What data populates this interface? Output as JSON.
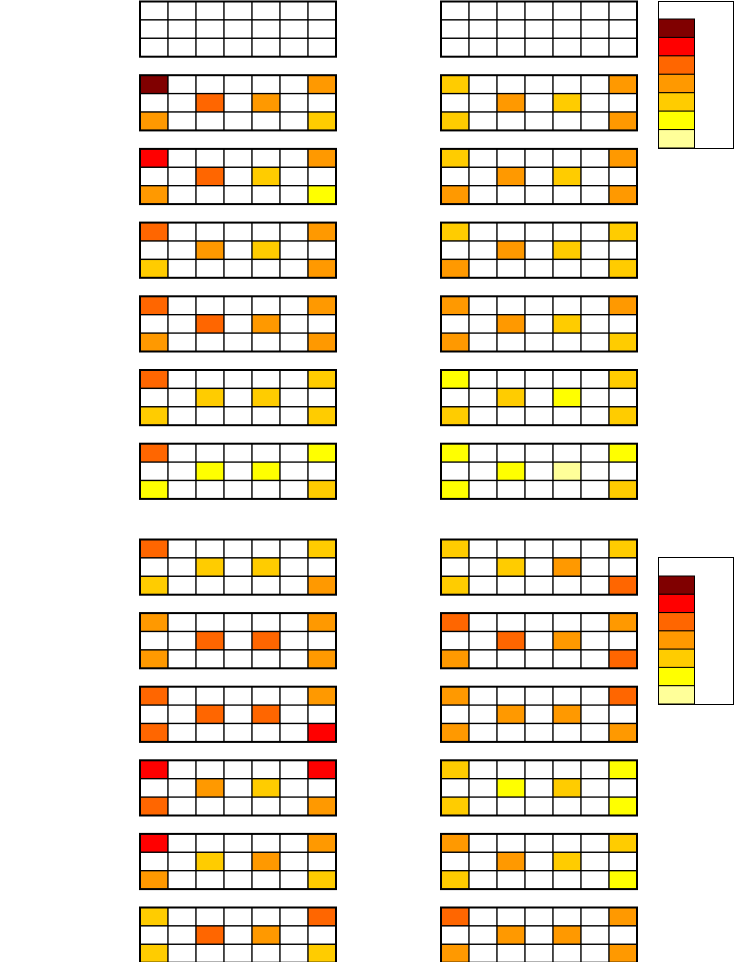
{
  "palette": [
    "#ffffff",
    "#800000",
    "#ff0000",
    "#ff6600",
    "#ff9900",
    "#ffcc00",
    "#ffff00",
    "#ffff99"
  ],
  "panels": [
    {
      "blocks": [
        [
          [
            0,
            0,
            0,
            0,
            0,
            0,
            0
          ],
          [
            0,
            0,
            0,
            0,
            0,
            0,
            0
          ],
          [
            0,
            0,
            0,
            0,
            0,
            0,
            0
          ]
        ],
        [
          [
            1,
            0,
            0,
            0,
            0,
            0,
            4
          ],
          [
            0,
            0,
            3,
            0,
            4,
            0,
            0
          ],
          [
            4,
            0,
            0,
            0,
            0,
            0,
            5
          ]
        ],
        [
          [
            2,
            0,
            0,
            0,
            0,
            0,
            4
          ],
          [
            0,
            0,
            3,
            0,
            5,
            0,
            0
          ],
          [
            4,
            0,
            0,
            0,
            0,
            0,
            6
          ]
        ],
        [
          [
            3,
            0,
            0,
            0,
            0,
            0,
            4
          ],
          [
            0,
            0,
            4,
            0,
            5,
            0,
            0
          ],
          [
            5,
            0,
            0,
            0,
            0,
            0,
            4
          ]
        ],
        [
          [
            3,
            0,
            0,
            0,
            0,
            0,
            4
          ],
          [
            0,
            0,
            3,
            0,
            4,
            0,
            0
          ],
          [
            4,
            0,
            0,
            0,
            0,
            0,
            4
          ]
        ],
        [
          [
            3,
            0,
            0,
            0,
            0,
            0,
            5
          ],
          [
            0,
            0,
            5,
            0,
            5,
            0,
            0
          ],
          [
            5,
            0,
            0,
            0,
            0,
            0,
            5
          ]
        ],
        [
          [
            3,
            0,
            0,
            0,
            0,
            0,
            6
          ],
          [
            0,
            0,
            6,
            0,
            6,
            0,
            0
          ],
          [
            6,
            0,
            0,
            0,
            0,
            0,
            5
          ]
        ]
      ]
    },
    {
      "blocks": [
        [
          [
            0,
            0,
            0,
            0,
            0,
            0,
            0
          ],
          [
            0,
            0,
            0,
            0,
            0,
            0,
            0
          ],
          [
            0,
            0,
            0,
            0,
            0,
            0,
            0
          ]
        ],
        [
          [
            5,
            0,
            0,
            0,
            0,
            0,
            4
          ],
          [
            0,
            0,
            4,
            0,
            5,
            0,
            0
          ],
          [
            5,
            0,
            0,
            0,
            0,
            0,
            4
          ]
        ],
        [
          [
            5,
            0,
            0,
            0,
            0,
            0,
            4
          ],
          [
            0,
            0,
            4,
            0,
            5,
            0,
            0
          ],
          [
            4,
            0,
            0,
            0,
            0,
            0,
            4
          ]
        ],
        [
          [
            5,
            0,
            0,
            0,
            0,
            0,
            5
          ],
          [
            0,
            0,
            4,
            0,
            5,
            0,
            0
          ],
          [
            4,
            0,
            0,
            0,
            0,
            0,
            5
          ]
        ],
        [
          [
            4,
            0,
            0,
            0,
            0,
            0,
            4
          ],
          [
            0,
            0,
            4,
            0,
            5,
            0,
            0
          ],
          [
            4,
            0,
            0,
            0,
            0,
            0,
            5
          ]
        ],
        [
          [
            6,
            0,
            0,
            0,
            0,
            0,
            5
          ],
          [
            0,
            0,
            5,
            0,
            6,
            0,
            0
          ],
          [
            5,
            0,
            0,
            0,
            0,
            0,
            5
          ]
        ],
        [
          [
            6,
            0,
            0,
            0,
            0,
            0,
            6
          ],
          [
            0,
            0,
            6,
            0,
            7,
            0,
            0
          ],
          [
            6,
            0,
            0,
            0,
            0,
            0,
            5
          ]
        ]
      ]
    },
    {
      "blocks": [
        [
          [
            3,
            0,
            0,
            0,
            0,
            0,
            5
          ],
          [
            0,
            0,
            5,
            0,
            5,
            0,
            0
          ],
          [
            5,
            0,
            0,
            0,
            0,
            0,
            4
          ]
        ],
        [
          [
            4,
            0,
            0,
            0,
            0,
            0,
            4
          ],
          [
            0,
            0,
            3,
            0,
            3,
            0,
            0
          ],
          [
            4,
            0,
            0,
            0,
            0,
            0,
            4
          ]
        ],
        [
          [
            3,
            0,
            0,
            0,
            0,
            0,
            4
          ],
          [
            0,
            0,
            3,
            0,
            3,
            0,
            0
          ],
          [
            3,
            0,
            0,
            0,
            0,
            0,
            2
          ]
        ],
        [
          [
            2,
            0,
            0,
            0,
            0,
            0,
            2
          ],
          [
            0,
            0,
            4,
            0,
            5,
            0,
            0
          ],
          [
            3,
            0,
            0,
            0,
            0,
            0,
            4
          ]
        ],
        [
          [
            2,
            0,
            0,
            0,
            0,
            0,
            4
          ],
          [
            0,
            0,
            5,
            0,
            4,
            0,
            0
          ],
          [
            4,
            0,
            0,
            0,
            0,
            0,
            5
          ]
        ],
        [
          [
            5,
            0,
            0,
            0,
            0,
            0,
            3
          ],
          [
            0,
            0,
            3,
            0,
            4,
            0,
            0
          ],
          [
            5,
            0,
            0,
            0,
            0,
            0,
            5
          ]
        ]
      ]
    },
    {
      "blocks": [
        [
          [
            5,
            0,
            0,
            0,
            0,
            0,
            5
          ],
          [
            0,
            0,
            5,
            0,
            4,
            0,
            0
          ],
          [
            5,
            0,
            0,
            0,
            0,
            0,
            3
          ]
        ],
        [
          [
            3,
            0,
            0,
            0,
            0,
            0,
            4
          ],
          [
            0,
            0,
            3,
            0,
            4,
            0,
            0
          ],
          [
            4,
            0,
            0,
            0,
            0,
            0,
            3
          ]
        ],
        [
          [
            4,
            0,
            0,
            0,
            0,
            0,
            3
          ],
          [
            0,
            0,
            4,
            0,
            4,
            0,
            0
          ],
          [
            4,
            0,
            0,
            0,
            0,
            0,
            4
          ]
        ],
        [
          [
            5,
            0,
            0,
            0,
            0,
            0,
            6
          ],
          [
            0,
            0,
            6,
            0,
            5,
            0,
            0
          ],
          [
            5,
            0,
            0,
            0,
            0,
            0,
            6
          ]
        ],
        [
          [
            4,
            0,
            0,
            0,
            0,
            0,
            5
          ],
          [
            0,
            0,
            4,
            0,
            5,
            0,
            0
          ],
          [
            5,
            0,
            0,
            0,
            0,
            0,
            6
          ]
        ],
        [
          [
            3,
            0,
            0,
            0,
            0,
            0,
            4
          ],
          [
            0,
            0,
            4,
            0,
            4,
            0,
            0
          ],
          [
            4,
            0,
            0,
            0,
            0,
            0,
            4
          ]
        ]
      ]
    }
  ]
}
